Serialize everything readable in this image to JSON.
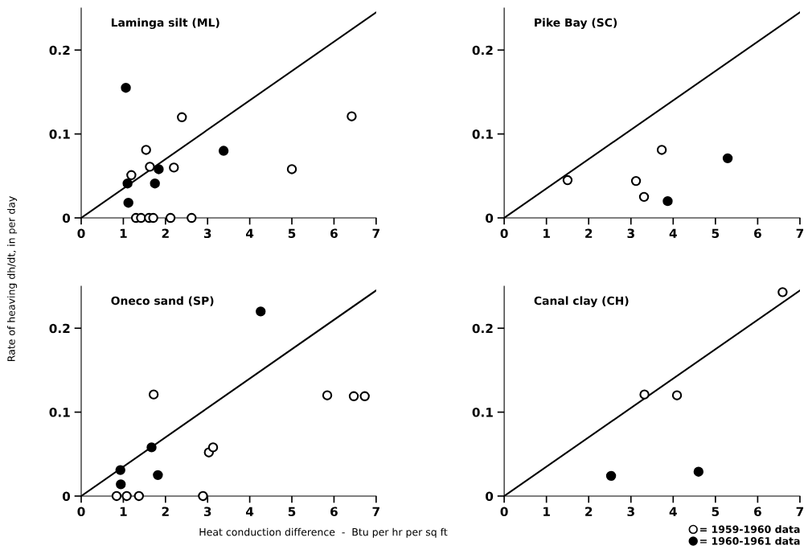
{
  "chart_data": [
    {
      "type": "scatter",
      "title": "Laminga silt (ML)",
      "ylabel": "Rate of heaving dh/dt, in per day",
      "xlim": [
        0,
        7
      ],
      "ylim": [
        0,
        0.25
      ],
      "xticks": [
        0,
        1,
        2,
        3,
        4,
        5,
        6,
        7
      ],
      "yticks": [
        0,
        0.1,
        0.2
      ],
      "grid": false,
      "marker": "circle",
      "series": [
        {
          "type": "line",
          "marker": "none",
          "color": "#000000",
          "x": [
            0,
            7
          ],
          "values": [
            0,
            0.245
          ]
        },
        {
          "color": "#ffffff",
          "x": [
            1.19,
            1.54,
            1.63,
            2.39,
            2.2,
            5.0,
            6.42,
            1.3,
            1.42,
            1.61,
            1.71,
            2.12,
            2.62
          ],
          "values": [
            0.051,
            0.081,
            0.061,
            0.12,
            0.06,
            0.058,
            0.121,
            0,
            0,
            0,
            0,
            0,
            0
          ]
        },
        {
          "color": "#000000",
          "x": [
            1.06,
            1.1,
            1.12,
            1.84,
            1.75,
            3.38
          ],
          "values": [
            0.155,
            0.041,
            0.018,
            0.058,
            0.041,
            0.08
          ]
        }
      ]
    },
    {
      "type": "scatter",
      "title": "Pike Bay (SC)",
      "xlim": [
        0,
        7
      ],
      "ylim": [
        0,
        0.25
      ],
      "xticks": [
        0,
        1,
        2,
        3,
        4,
        5,
        6,
        7
      ],
      "yticks": [
        0,
        0.1,
        0.2
      ],
      "grid": false,
      "marker": "circle",
      "series": [
        {
          "type": "line",
          "marker": "none",
          "color": "#000000",
          "x": [
            0,
            7
          ],
          "values": [
            0,
            0.245
          ]
        },
        {
          "color": "#ffffff",
          "x": [
            1.5,
            3.12,
            3.31,
            3.73
          ],
          "values": [
            0.045,
            0.044,
            0.025,
            0.081
          ]
        },
        {
          "color": "#000000",
          "x": [
            3.87,
            5.29
          ],
          "values": [
            0.02,
            0.071
          ]
        }
      ]
    },
    {
      "type": "scatter",
      "title": "Oneco sand (SP)",
      "xlabel": "Heat conduction difference  -  Btu per hr per sq ft",
      "xlim": [
        0,
        7
      ],
      "ylim": [
        0,
        0.25
      ],
      "xticks": [
        0,
        1,
        2,
        3,
        4,
        5,
        6,
        7
      ],
      "yticks": [
        0,
        0.1,
        0.2
      ],
      "grid": false,
      "marker": "circle",
      "series": [
        {
          "type": "line",
          "marker": "none",
          "color": "#000000",
          "x": [
            0,
            7
          ],
          "values": [
            0,
            0.245
          ]
        },
        {
          "color": "#ffffff",
          "x": [
            1.72,
            3.03,
            3.13,
            5.84,
            6.47,
            6.73,
            0.84,
            1.08,
            1.37,
            2.89
          ],
          "values": [
            0.121,
            0.052,
            0.058,
            0.12,
            0.119,
            0.119,
            0,
            0,
            0,
            0
          ]
        },
        {
          "color": "#000000",
          "x": [
            0.93,
            0.94,
            1.67,
            1.82,
            4.26
          ],
          "values": [
            0.031,
            0.014,
            0.058,
            0.025,
            0.22
          ]
        }
      ]
    },
    {
      "type": "scatter",
      "title": "Canal clay (CH)",
      "xlim": [
        0,
        7
      ],
      "ylim": [
        0,
        0.25
      ],
      "xticks": [
        0,
        1,
        2,
        3,
        4,
        5,
        6,
        7
      ],
      "yticks": [
        0,
        0.1,
        0.2
      ],
      "grid": false,
      "legend": "bottom right",
      "marker": "circle",
      "series": [
        {
          "type": "line",
          "marker": "none",
          "color": "#000000",
          "x": [
            0,
            7
          ],
          "values": [
            0,
            0.245
          ]
        },
        {
          "name": "= 1959-1960 data",
          "color": "#ffffff",
          "x": [
            3.32,
            4.09,
            6.59
          ],
          "values": [
            0.121,
            0.12,
            0.243
          ]
        },
        {
          "name": "= 1960-1961 data",
          "color": "#000000",
          "x": [
            2.53,
            4.6
          ],
          "values": [
            0.024,
            0.029
          ]
        }
      ]
    }
  ]
}
